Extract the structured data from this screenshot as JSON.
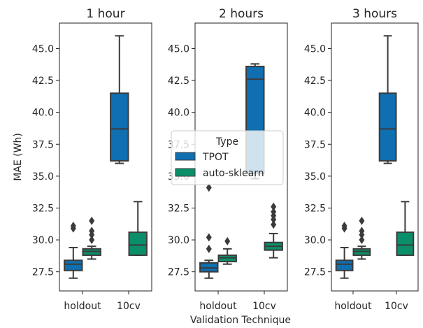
{
  "chart_data": [
    {
      "type": "box",
      "title": "1 hour",
      "categories": [
        "holdout",
        "10cv"
      ],
      "ylim": [
        26.0,
        47.0
      ],
      "yticks": [
        27.5,
        30.0,
        32.5,
        35.0,
        37.5,
        40.0,
        42.5,
        45.0
      ],
      "ylabel": "MAE (Wh)",
      "series": [
        {
          "name": "TPOT",
          "boxes": [
            {
              "min": 27.0,
              "q1": 27.6,
              "median": 28.1,
              "q3": 28.4,
              "max": 29.4,
              "outliers": [
                30.9,
                31.1
              ]
            },
            {
              "min": 36.0,
              "q1": 36.2,
              "median": 38.7,
              "q3": 41.5,
              "max": 46.0,
              "outliers": []
            }
          ]
        },
        {
          "name": "auto-sklearn",
          "boxes": [
            {
              "min": 28.5,
              "q1": 28.8,
              "median": 29.1,
              "q3": 29.3,
              "max": 29.5,
              "outliers": [
                30.0,
                30.4,
                30.7,
                31.5
              ]
            },
            {
              "min": 28.8,
              "q1": 28.8,
              "median": 29.6,
              "q3": 30.6,
              "max": 33.0,
              "outliers": []
            }
          ]
        }
      ]
    },
    {
      "type": "box",
      "title": "2 hours",
      "categories": [
        "holdout",
        "10cv"
      ],
      "ylim": [
        26.0,
        47.0
      ],
      "yticks": [
        27.5,
        30.0,
        32.5,
        35.0,
        37.5,
        40.0,
        42.5,
        45.0
      ],
      "series": [
        {
          "name": "TPOT",
          "boxes": [
            {
              "min": 27.0,
              "q1": 27.5,
              "median": 27.8,
              "q3": 28.2,
              "max": 28.4,
              "outliers": [
                29.3,
                30.2,
                34.1
              ]
            },
            {
              "min": 34.8,
              "q1": 35.2,
              "median": 42.6,
              "q3": 43.6,
              "max": 43.8,
              "outliers": []
            }
          ]
        },
        {
          "name": "auto-sklearn",
          "boxes": [
            {
              "min": 28.1,
              "q1": 28.3,
              "median": 28.6,
              "q3": 28.8,
              "max": 29.3,
              "outliers": [
                29.9
              ]
            },
            {
              "min": 28.6,
              "q1": 29.2,
              "median": 29.5,
              "q3": 29.8,
              "max": 30.5,
              "outliers": [
                31.2,
                31.6,
                31.9,
                32.2,
                32.6
              ]
            }
          ]
        }
      ]
    },
    {
      "type": "box",
      "title": "3 hours",
      "categories": [
        "holdout",
        "10cv"
      ],
      "ylim": [
        26.0,
        47.0
      ],
      "yticks": [
        27.5,
        30.0,
        32.5,
        35.0,
        37.5,
        40.0,
        42.5,
        45.0
      ],
      "series": [
        {
          "name": "TPOT",
          "boxes": [
            {
              "min": 27.0,
              "q1": 27.6,
              "median": 28.1,
              "q3": 28.4,
              "max": 29.4,
              "outliers": [
                30.9,
                31.1
              ]
            },
            {
              "min": 36.0,
              "q1": 36.2,
              "median": 38.7,
              "q3": 41.5,
              "max": 46.0,
              "outliers": []
            }
          ]
        },
        {
          "name": "auto-sklearn",
          "boxes": [
            {
              "min": 28.5,
              "q1": 28.8,
              "median": 29.1,
              "q3": 29.3,
              "max": 29.5,
              "outliers": [
                30.0,
                30.4,
                30.7,
                31.5
              ]
            },
            {
              "min": 28.8,
              "q1": 28.8,
              "median": 29.6,
              "q3": 30.6,
              "max": 33.0,
              "outliers": []
            }
          ]
        }
      ]
    }
  ],
  "xlabel": "Validation Technique",
  "legend": {
    "title": "Type",
    "placement": "center",
    "items": [
      {
        "label": "TPOT",
        "color": "#0f6fb0"
      },
      {
        "label": "auto-sklearn",
        "color": "#0b8f6a"
      }
    ]
  },
  "colors": {
    "TPOT": "#0f6fb0",
    "auto-sklearn": "#0b8f6a",
    "edge": "#3b3b3b"
  }
}
